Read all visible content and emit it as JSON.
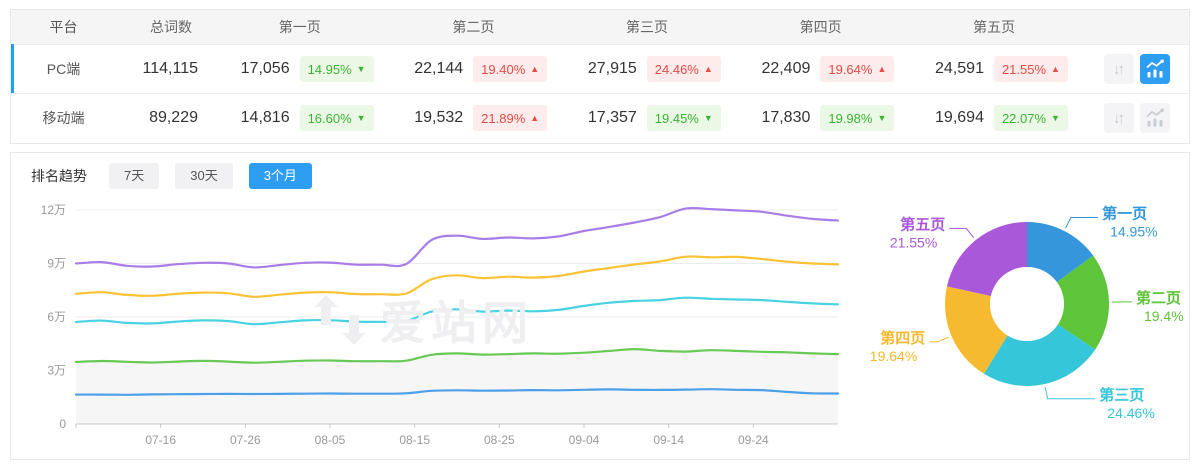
{
  "table": {
    "headers": {
      "platform": "平台",
      "total": "总词数",
      "p1": "第一页",
      "p2": "第二页",
      "p3": "第三页",
      "p4": "第四页",
      "p5": "第五页"
    },
    "rows": [
      {
        "platform": "PC端",
        "total": "114,115",
        "selected": true,
        "trend_active": true,
        "pages": [
          {
            "count": "17,056",
            "pct": "14.95%",
            "dir": "down",
            "arrow": "▼"
          },
          {
            "count": "22,144",
            "pct": "19.40%",
            "dir": "up",
            "arrow": "▲"
          },
          {
            "count": "27,915",
            "pct": "24.46%",
            "dir": "up",
            "arrow": "▲"
          },
          {
            "count": "22,409",
            "pct": "19.64%",
            "dir": "up",
            "arrow": "▲"
          },
          {
            "count": "24,591",
            "pct": "21.55%",
            "dir": "up",
            "arrow": "▲"
          }
        ]
      },
      {
        "platform": "移动端",
        "total": "89,229",
        "selected": false,
        "trend_active": false,
        "pages": [
          {
            "count": "14,816",
            "pct": "16.60%",
            "dir": "down",
            "arrow": "▼"
          },
          {
            "count": "19,532",
            "pct": "21.89%",
            "dir": "up",
            "arrow": "▲"
          },
          {
            "count": "17,357",
            "pct": "19.45%",
            "dir": "down",
            "arrow": "▼"
          },
          {
            "count": "17,830",
            "pct": "19.98%",
            "dir": "down",
            "arrow": "▼"
          },
          {
            "count": "19,694",
            "pct": "22.07%",
            "dir": "down",
            "arrow": "▼"
          }
        ]
      }
    ]
  },
  "trend": {
    "title": "排名趋势",
    "tabs": [
      {
        "label": "7天",
        "active": false
      },
      {
        "label": "30天",
        "active": false
      },
      {
        "label": "3个月",
        "active": true
      }
    ],
    "watermark": "爱站网"
  },
  "colors": {
    "accent_blue": "#2e9ef3",
    "row_accent": "#1e9fff",
    "badge_up_text": "#e84b47",
    "badge_down_text": "#3cb235"
  },
  "chart_data": [
    {
      "type": "line",
      "title": "排名趋势 3个月",
      "stacked_cumulative": true,
      "unit": "万",
      "ylim": [
        0,
        12
      ],
      "yticks": [
        {
          "v": 0,
          "label": "0"
        },
        {
          "v": 3,
          "label": "3万"
        },
        {
          "v": 6,
          "label": "6万"
        },
        {
          "v": 9,
          "label": "9万"
        },
        {
          "v": 12,
          "label": "12万"
        }
      ],
      "x_day_range": [
        0,
        90
      ],
      "xticks": [
        {
          "day": 10,
          "label": "07-16"
        },
        {
          "day": 20,
          "label": "07-26"
        },
        {
          "day": 30,
          "label": "08-05"
        },
        {
          "day": 40,
          "label": "08-15"
        },
        {
          "day": 50,
          "label": "08-25"
        },
        {
          "day": 60,
          "label": "09-04"
        },
        {
          "day": 70,
          "label": "09-14"
        },
        {
          "day": 80,
          "label": "09-24"
        }
      ],
      "series": [
        {
          "name": "第一页",
          "color": "#4d9fe8",
          "area": false,
          "values": [
            1.65,
            1.65,
            1.64,
            1.66,
            1.67,
            1.68,
            1.69,
            1.68,
            1.69,
            1.7,
            1.71,
            1.7,
            1.7,
            1.72,
            1.86,
            1.89,
            1.87,
            1.88,
            1.9,
            1.89,
            1.92,
            1.94,
            1.92,
            1.91,
            1.93,
            1.95,
            1.92,
            1.9,
            1.8,
            1.72,
            1.71
          ]
        },
        {
          "name": "第二页",
          "color": "#68ca55",
          "area": true,
          "values": [
            3.48,
            3.53,
            3.49,
            3.45,
            3.5,
            3.54,
            3.5,
            3.44,
            3.49,
            3.55,
            3.56,
            3.52,
            3.52,
            3.55,
            3.88,
            3.96,
            3.89,
            3.92,
            3.96,
            3.94,
            4.0,
            4.1,
            4.2,
            4.1,
            4.06,
            4.14,
            4.1,
            4.05,
            4.02,
            3.96,
            3.92
          ]
        },
        {
          "name": "第三页",
          "color": "#48d2e2",
          "area": false,
          "values": [
            5.72,
            5.8,
            5.67,
            5.64,
            5.74,
            5.81,
            5.77,
            5.6,
            5.7,
            5.81,
            5.82,
            5.74,
            5.73,
            5.77,
            6.3,
            6.43,
            6.3,
            6.36,
            6.32,
            6.4,
            6.62,
            6.8,
            6.9,
            6.95,
            7.08,
            7.02,
            6.98,
            6.95,
            6.85,
            6.76,
            6.71
          ]
        },
        {
          "name": "第四页",
          "color": "#fcc235",
          "area": false,
          "values": [
            7.3,
            7.39,
            7.24,
            7.19,
            7.3,
            7.37,
            7.33,
            7.13,
            7.25,
            7.37,
            7.39,
            7.29,
            7.28,
            7.32,
            8.12,
            8.34,
            8.18,
            8.26,
            8.21,
            8.3,
            8.55,
            8.75,
            8.95,
            9.12,
            9.38,
            9.35,
            9.37,
            9.25,
            9.1,
            9.0,
            8.95
          ]
        },
        {
          "name": "第五页",
          "color": "#a97de8",
          "area": false,
          "values": [
            9.0,
            9.08,
            8.87,
            8.83,
            8.96,
            9.04,
            9.0,
            8.78,
            8.91,
            9.04,
            9.05,
            8.94,
            8.93,
            8.97,
            10.32,
            10.56,
            10.38,
            10.46,
            10.41,
            10.52,
            10.82,
            11.05,
            11.3,
            11.6,
            12.08,
            12.05,
            11.98,
            11.9,
            11.68,
            11.5,
            11.41
          ]
        }
      ],
      "area_fill": "#f6f6f7",
      "grid_color": "#ececee",
      "axis_color": "#c8c8c8",
      "tick_text_color": "#999999"
    },
    {
      "type": "donut",
      "slices": [
        {
          "label": "第一页",
          "pct": 14.95,
          "display": "14.95%",
          "color": "#3596db"
        },
        {
          "label": "第二页",
          "pct": 19.4,
          "display": "19.4%",
          "color": "#5ec53a"
        },
        {
          "label": "第三页",
          "pct": 24.46,
          "display": "24.46%",
          "color": "#35c6d9"
        },
        {
          "label": "第四页",
          "pct": 19.64,
          "display": "19.64%",
          "color": "#f5ba2f"
        },
        {
          "label": "第五页",
          "pct": 21.55,
          "display": "21.55%",
          "color": "#a958da"
        }
      ]
    }
  ]
}
